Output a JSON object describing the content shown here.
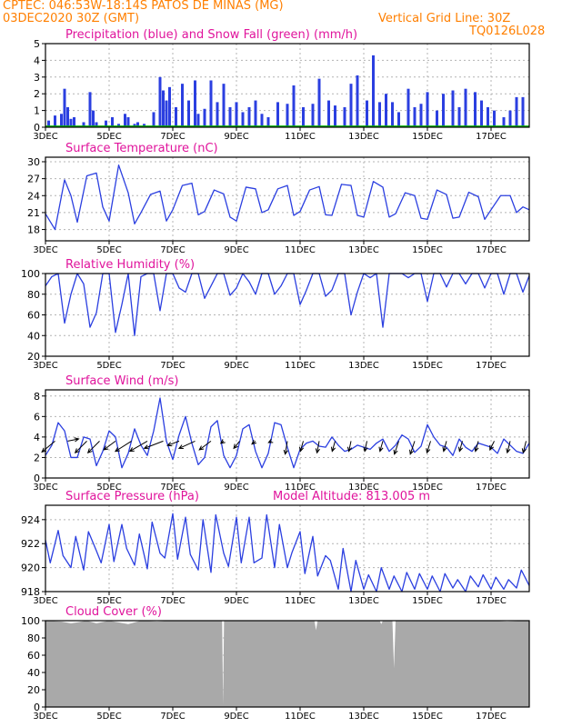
{
  "header": {
    "line1": "CPTEC:   046:53W-18:14S   PATOS DE MINAS (MG)",
    "line2": "03DEC2020 30Z (GMT)",
    "grid_note": "Vertical Grid Line: 30Z",
    "model_code": "TQ0126L028"
  },
  "colors": {
    "header": "#ff7f00",
    "title": "#e0149c",
    "series": "#2b3fe0",
    "snow": "#00b000",
    "cloud": "#a9a9a9",
    "grid": "#b4b4b4"
  },
  "x_tick_labels": [
    "3DEC",
    "5DEC",
    "7DEC",
    "9DEC",
    "11DEC",
    "13DEC",
    "15DEC",
    "17DEC"
  ],
  "x_tick_days": [
    3,
    5,
    7,
    9,
    11,
    13,
    15,
    17
  ],
  "chart_data": [
    {
      "type": "bar",
      "title": "Precipitation (blue) and Snow Fall (green) (mm/h)",
      "ylim": [
        0,
        5
      ],
      "yticks": [
        0,
        1,
        2,
        3,
        4,
        5
      ],
      "xlim": [
        3,
        18.2
      ],
      "series": [
        {
          "color": "#2b3fe0",
          "x": [
            3.1,
            3.3,
            3.5,
            3.6,
            3.7,
            3.8,
            3.9,
            4.2,
            4.4,
            4.5,
            4.6,
            4.9,
            5.1,
            5.3,
            5.5,
            5.6,
            5.8,
            5.9,
            6.1,
            6.4,
            6.6,
            6.7,
            6.8,
            6.9,
            7.1,
            7.3,
            7.5,
            7.7,
            7.8,
            8.0,
            8.2,
            8.4,
            8.6,
            8.8,
            9.0,
            9.2,
            9.4,
            9.6,
            9.8,
            10.0,
            10.3,
            10.6,
            10.8,
            11.1,
            11.4,
            11.6,
            11.9,
            12.1,
            12.4,
            12.6,
            12.8,
            13.1,
            13.3,
            13.5,
            13.7,
            13.9,
            14.1,
            14.4,
            14.6,
            14.8,
            15.0,
            15.3,
            15.5,
            15.8,
            16.0,
            16.2,
            16.5,
            16.7,
            16.9,
            17.1,
            17.4,
            17.6,
            17.8,
            18.0
          ],
          "values": [
            0.4,
            0.7,
            0.8,
            2.3,
            1.2,
            0.5,
            0.6,
            0.3,
            2.1,
            1.0,
            0.3,
            0.4,
            0.6,
            0.2,
            0.8,
            0.6,
            0.2,
            0.3,
            0.2,
            0.9,
            3.0,
            2.2,
            1.6,
            2.4,
            1.2,
            2.6,
            1.6,
            2.8,
            0.8,
            1.1,
            2.8,
            1.5,
            2.6,
            1.2,
            1.5,
            0.9,
            1.2,
            1.6,
            0.8,
            0.6,
            1.5,
            1.4,
            2.5,
            1.2,
            1.4,
            2.9,
            1.6,
            1.3,
            1.2,
            2.6,
            3.1,
            1.6,
            4.3,
            1.5,
            2.0,
            1.5,
            0.9,
            2.3,
            1.2,
            1.4,
            2.1,
            1.0,
            2.0,
            2.2,
            1.2,
            2.3,
            2.1,
            1.6,
            1.2,
            1.0,
            0.6,
            1.0,
            1.8,
            1.8
          ]
        },
        {
          "color": "#00b000",
          "x": [
            3,
            18.2
          ],
          "values": [
            0.05,
            0.05
          ]
        }
      ]
    },
    {
      "type": "line",
      "title": "Surface Temperature (nC)",
      "ylim": [
        16,
        30.8
      ],
      "yticks": [
        18,
        21,
        24,
        27,
        30
      ],
      "xlim": [
        3,
        18.2
      ],
      "series": [
        {
          "color": "#2b3fe0",
          "x": [
            3.0,
            3.3,
            3.6,
            3.8,
            4.0,
            4.3,
            4.6,
            4.8,
            5.0,
            5.3,
            5.6,
            5.8,
            6.0,
            6.3,
            6.6,
            6.8,
            7.0,
            7.3,
            7.6,
            7.8,
            8.0,
            8.3,
            8.6,
            8.8,
            9.0,
            9.3,
            9.6,
            9.8,
            10.0,
            10.3,
            10.6,
            10.8,
            11.0,
            11.3,
            11.6,
            11.8,
            12.0,
            12.3,
            12.6,
            12.8,
            13.0,
            13.3,
            13.6,
            13.8,
            14.0,
            14.3,
            14.6,
            14.8,
            15.0,
            15.3,
            15.6,
            15.8,
            16.0,
            16.3,
            16.6,
            16.8,
            17.0,
            17.3,
            17.6,
            17.8,
            18.0,
            18.2
          ],
          "values": [
            20.8,
            18.0,
            26.8,
            24.0,
            19.3,
            27.5,
            28.0,
            22.0,
            19.5,
            29.4,
            24.5,
            19.0,
            21.0,
            24.2,
            24.8,
            19.5,
            21.5,
            25.8,
            26.2,
            20.6,
            21.2,
            25.0,
            24.3,
            20.2,
            19.5,
            25.5,
            25.2,
            21.0,
            21.5,
            25.2,
            25.8,
            20.5,
            21.2,
            25.0,
            25.6,
            20.6,
            20.5,
            26.0,
            25.8,
            20.5,
            20.2,
            26.5,
            25.5,
            20.2,
            20.8,
            24.5,
            24.0,
            20.0,
            19.8,
            25.0,
            24.2,
            20.0,
            20.2,
            24.6,
            23.8,
            19.8,
            21.5,
            24.0,
            24.0,
            21.0,
            22.0,
            21.5
          ]
        }
      ]
    },
    {
      "type": "line",
      "title": "Relative Humidity (%)",
      "ylim": [
        20,
        100
      ],
      "yticks": [
        20,
        40,
        60,
        80,
        100
      ],
      "xlim": [
        3,
        18.2
      ],
      "series": [
        {
          "color": "#2b3fe0",
          "x": [
            3.0,
            3.2,
            3.4,
            3.6,
            3.8,
            4.0,
            4.2,
            4.4,
            4.6,
            4.8,
            5.0,
            5.2,
            5.4,
            5.6,
            5.8,
            6.0,
            6.2,
            6.4,
            6.6,
            6.8,
            7.0,
            7.2,
            7.4,
            7.6,
            7.8,
            8.0,
            8.2,
            8.4,
            8.6,
            8.8,
            9.0,
            9.2,
            9.4,
            9.6,
            9.8,
            10.0,
            10.2,
            10.4,
            10.6,
            10.8,
            11.0,
            11.2,
            11.4,
            11.6,
            11.8,
            12.0,
            12.2,
            12.4,
            12.6,
            12.8,
            13.0,
            13.2,
            13.4,
            13.6,
            13.8,
            14.0,
            14.2,
            14.4,
            14.6,
            14.8,
            15.0,
            15.2,
            15.4,
            15.6,
            15.8,
            16.0,
            16.2,
            16.4,
            16.6,
            16.8,
            17.0,
            17.2,
            17.4,
            17.6,
            17.8,
            18.0,
            18.2
          ],
          "values": [
            88,
            97,
            100,
            52,
            80,
            100,
            90,
            48,
            62,
            100,
            100,
            43,
            70,
            100,
            40,
            97,
            100,
            100,
            64,
            100,
            100,
            86,
            82,
            100,
            100,
            76,
            88,
            100,
            100,
            79,
            86,
            100,
            92,
            80,
            100,
            100,
            80,
            88,
            100,
            100,
            70,
            84,
            100,
            100,
            78,
            84,
            100,
            100,
            60,
            82,
            100,
            96,
            100,
            48,
            100,
            100,
            100,
            96,
            100,
            100,
            73,
            100,
            100,
            87,
            100,
            100,
            90,
            100,
            100,
            86,
            100,
            100,
            80,
            100,
            100,
            82,
            98
          ]
        }
      ]
    },
    {
      "type": "line",
      "title": "Surface Wind (m/s)",
      "ylim": [
        0,
        8.6
      ],
      "yticks": [
        0,
        2,
        4,
        6,
        8
      ],
      "xlim": [
        3,
        18.2
      ],
      "series": [
        {
          "color": "#2b3fe0",
          "x": [
            3.0,
            3.2,
            3.4,
            3.6,
            3.8,
            4.0,
            4.2,
            4.4,
            4.6,
            4.8,
            5.0,
            5.2,
            5.4,
            5.6,
            5.8,
            6.0,
            6.2,
            6.4,
            6.6,
            6.8,
            7.0,
            7.2,
            7.4,
            7.6,
            7.8,
            8.0,
            8.2,
            8.4,
            8.6,
            8.8,
            9.0,
            9.2,
            9.4,
            9.6,
            9.8,
            10.0,
            10.2,
            10.4,
            10.6,
            10.8,
            11.0,
            11.2,
            11.4,
            11.6,
            11.8,
            12.0,
            12.2,
            12.4,
            12.6,
            12.8,
            13.0,
            13.2,
            13.4,
            13.6,
            13.8,
            14.0,
            14.2,
            14.4,
            14.6,
            14.8,
            15.0,
            15.2,
            15.4,
            15.6,
            15.8,
            16.0,
            16.2,
            16.4,
            16.6,
            16.8,
            17.0,
            17.2,
            17.4,
            17.6,
            17.8,
            18.0,
            18.2
          ],
          "values": [
            2.2,
            3.2,
            5.4,
            4.6,
            2.0,
            2.0,
            4.0,
            3.8,
            1.2,
            2.6,
            4.6,
            4.0,
            1.0,
            2.4,
            4.8,
            3.2,
            2.2,
            4.6,
            7.8,
            3.6,
            1.8,
            4.2,
            6.0,
            3.4,
            1.3,
            2.0,
            5.0,
            5.6,
            2.2,
            1.0,
            2.2,
            4.8,
            5.2,
            2.6,
            1.0,
            2.4,
            5.4,
            5.2,
            3.0,
            1.0,
            2.8,
            3.4,
            3.6,
            3.1,
            3.0,
            4.0,
            3.2,
            2.6,
            2.8,
            3.2,
            3.0,
            2.8,
            3.4,
            3.8,
            2.6,
            3.2,
            4.2,
            3.8,
            2.5,
            3.1,
            5.2,
            4.0,
            3.2,
            3.0,
            2.2,
            3.8,
            3.0,
            2.6,
            3.4,
            3.2,
            3.0,
            2.4,
            3.8,
            3.2,
            2.6,
            2.4,
            3.4
          ]
        }
      ],
      "wind_vectors": {
        "x": [
          3.3,
          3.7,
          4.3,
          4.7,
          5.2,
          5.7,
          6.2,
          6.7,
          7.2,
          7.7,
          8.2,
          8.6,
          9.1,
          9.6,
          10.1,
          10.6,
          11.1,
          11.6,
          12.1,
          12.6,
          13.1,
          13.6,
          14.1,
          14.6,
          15.1,
          15.6,
          16.1,
          16.6,
          17.1,
          17.6,
          18.1
        ],
        "u": [
          -1.8,
          1.5,
          -1.6,
          -1.6,
          -1.6,
          -2.2,
          -2.4,
          -2.6,
          -1.6,
          -2.2,
          -1.6,
          -0.4,
          -0.8,
          -0.5,
          -0.4,
          -0.3,
          -0.4,
          -0.3,
          -0.4,
          -0.3,
          -0.3,
          -0.4,
          -0.6,
          -0.6,
          -0.5,
          -0.4,
          -0.4,
          -0.4,
          -0.6,
          -0.4,
          -0.4
        ],
        "v": [
          -1.5,
          0.3,
          -1.6,
          -1.6,
          -1.2,
          -1.4,
          -1.4,
          -1.0,
          -0.6,
          -1.0,
          -1.2,
          -0.3,
          -1.0,
          -0.4,
          -0.2,
          -1.8,
          -1.4,
          -1.6,
          -1.4,
          -1.4,
          -1.4,
          -1.4,
          -1.8,
          -1.8,
          -1.6,
          -1.4,
          -1.4,
          -1.4,
          -1.2,
          -1.6,
          -1.6
        ]
      }
    },
    {
      "type": "line",
      "title": "Surface Pressure (hPa)",
      "annotation": "Model Altitude: 813.005 m",
      "ylim": [
        918,
        925.2
      ],
      "yticks": [
        918,
        920,
        922,
        924
      ],
      "xlim": [
        3,
        18.2
      ],
      "series": [
        {
          "color": "#2b3fe0",
          "x": [
            3.0,
            3.15,
            3.4,
            3.55,
            3.8,
            3.95,
            4.2,
            4.35,
            4.6,
            4.75,
            5.0,
            5.15,
            5.4,
            5.55,
            5.8,
            5.95,
            6.2,
            6.35,
            6.6,
            6.75,
            7.0,
            7.15,
            7.4,
            7.55,
            7.8,
            7.95,
            8.2,
            8.35,
            8.6,
            8.75,
            9.0,
            9.15,
            9.4,
            9.55,
            9.8,
            9.95,
            10.2,
            10.35,
            10.6,
            10.75,
            11.0,
            11.15,
            11.4,
            11.55,
            11.8,
            11.95,
            12.2,
            12.35,
            12.6,
            12.75,
            13.0,
            13.15,
            13.4,
            13.55,
            13.8,
            13.95,
            14.2,
            14.35,
            14.6,
            14.75,
            15.0,
            15.15,
            15.4,
            15.55,
            15.8,
            15.95,
            16.2,
            16.35,
            16.6,
            16.75,
            17.0,
            17.15,
            17.4,
            17.55,
            17.8,
            17.95,
            18.2
          ],
          "values": [
            922.3,
            920.4,
            923.1,
            921.0,
            920.0,
            922.6,
            919.8,
            923.0,
            921.4,
            920.4,
            923.6,
            920.5,
            923.6,
            921.6,
            920.2,
            922.8,
            919.9,
            923.8,
            921.2,
            920.8,
            924.5,
            920.7,
            924.2,
            921.1,
            919.8,
            924.0,
            919.6,
            924.4,
            921.2,
            920.1,
            924.2,
            920.4,
            924.2,
            920.4,
            920.8,
            924.4,
            920.0,
            923.6,
            920.0,
            921.3,
            923.0,
            919.5,
            922.6,
            919.3,
            921.0,
            920.6,
            918.2,
            921.6,
            918.0,
            920.6,
            918.2,
            919.4,
            918.0,
            920.0,
            918.2,
            919.3,
            918.0,
            919.6,
            918.2,
            919.5,
            918.2,
            919.3,
            918.0,
            919.5,
            918.3,
            919.0,
            918.0,
            919.3,
            918.4,
            919.4,
            918.2,
            919.2,
            918.2,
            919.0,
            918.3,
            919.8,
            918.5
          ]
        }
      ]
    },
    {
      "type": "area",
      "title": "Cloud Cover (%)",
      "ylim": [
        0,
        100
      ],
      "yticks": [
        0,
        20,
        40,
        60,
        80,
        100
      ],
      "xlim": [
        3,
        18.2
      ],
      "series": [
        {
          "color": "#a9a9a9",
          "x": [
            3.0,
            3.5,
            3.8,
            4.0,
            4.3,
            4.6,
            5.0,
            5.3,
            5.6,
            6.0,
            6.5,
            7.0,
            8.0,
            8.55,
            8.58,
            8.61,
            9.0,
            10.0,
            11.0,
            11.45,
            11.5,
            11.55,
            12.0,
            13.0,
            13.5,
            13.55,
            13.6,
            13.9,
            13.95,
            14.0,
            15.0,
            16.0,
            17.0,
            17.5,
            18.2
          ],
          "values": [
            100,
            99,
            97,
            98,
            100,
            97,
            100,
            98,
            96,
            100,
            99,
            100,
            100,
            100,
            3,
            100,
            100,
            100,
            100,
            100,
            89,
            100,
            100,
            100,
            100,
            96,
            100,
            100,
            45,
            100,
            100,
            100,
            100,
            99,
            100
          ]
        }
      ]
    }
  ]
}
